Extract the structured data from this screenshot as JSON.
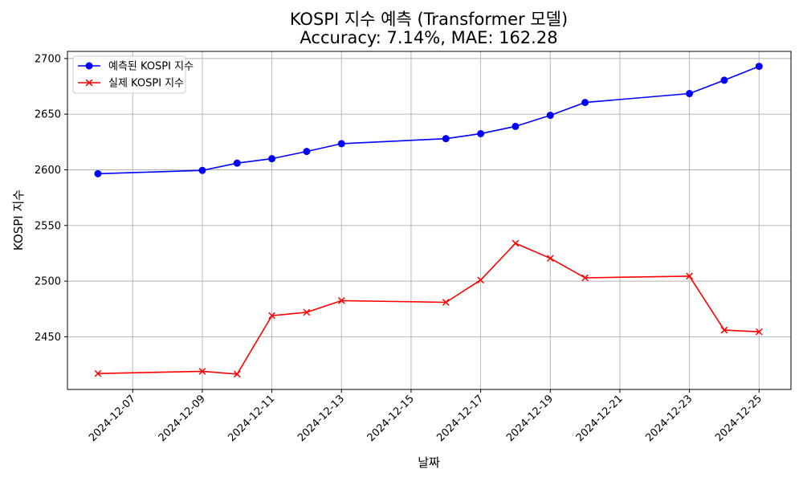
{
  "chart_data": {
    "type": "line",
    "title": "KOSPI 지수 예측 (Transformer 모델)",
    "subtitle": "Accuracy: 7.14%, MAE: 162.28",
    "xlabel": "날짜",
    "ylabel": "KOSPI 지수",
    "x": [
      "2024-12-06",
      "2024-12-09",
      "2024-12-10",
      "2024-12-11",
      "2024-12-12",
      "2024-12-13",
      "2024-12-16",
      "2024-12-17",
      "2024-12-18",
      "2024-12-19",
      "2024-12-20",
      "2024-12-23",
      "2024-12-24",
      "2024-12-25"
    ],
    "series": [
      {
        "name": "예측된 KOSPI 지수",
        "color": "#0000ff",
        "marker": "circle",
        "values": [
          2596.5,
          2599.5,
          2606.0,
          2610.0,
          2616.5,
          2623.5,
          2628.0,
          2632.5,
          2639.0,
          2649.0,
          2660.5,
          2668.5,
          2680.5,
          2693.0
        ]
      },
      {
        "name": "실제 KOSPI 지수",
        "color": "#ff0000",
        "marker": "x",
        "values": [
          2417.0,
          2419.0,
          2416.5,
          2469.0,
          2472.0,
          2482.5,
          2481.0,
          2501.0,
          2534.0,
          2520.5,
          2503.0,
          2504.5,
          2456.0,
          2454.5
        ]
      }
    ],
    "xticks": [
      "2024-12-07",
      "2024-12-09",
      "2024-12-11",
      "2024-12-13",
      "2024-12-15",
      "2024-12-17",
      "2024-12-19",
      "2024-12-21",
      "2024-12-23",
      "2024-12-25"
    ],
    "yticks": [
      2450,
      2500,
      2550,
      2600,
      2650,
      2700
    ],
    "xlim": [
      "2024-12-05T03:00",
      "2024-12-25T22:00"
    ],
    "ylim": [
      2402.7,
      2706.4
    ],
    "grid": true,
    "legend_position": "upper-left"
  }
}
